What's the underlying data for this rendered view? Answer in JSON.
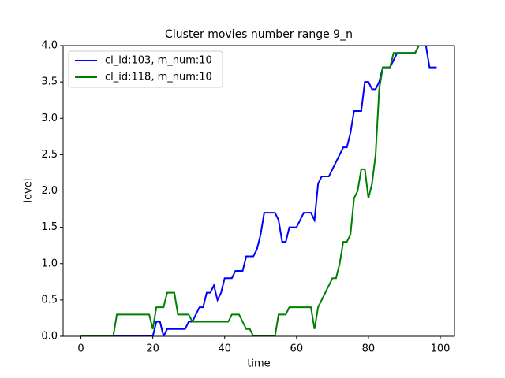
{
  "chart_data": {
    "type": "line",
    "title": "Cluster movies number range 9_n",
    "x_label": "time",
    "y_label": "level",
    "x": [
      0,
      1,
      2,
      3,
      4,
      5,
      6,
      7,
      8,
      9,
      10,
      11,
      12,
      13,
      14,
      15,
      16,
      17,
      18,
      19,
      20,
      21,
      22,
      23,
      24,
      25,
      26,
      27,
      28,
      29,
      30,
      31,
      32,
      33,
      34,
      35,
      36,
      37,
      38,
      39,
      40,
      41,
      42,
      43,
      44,
      45,
      46,
      47,
      48,
      49,
      50,
      51,
      52,
      53,
      54,
      55,
      56,
      57,
      58,
      59,
      60,
      61,
      62,
      63,
      64,
      65,
      66,
      67,
      68,
      69,
      70,
      71,
      72,
      73,
      74,
      75,
      76,
      77,
      78,
      79,
      80,
      81,
      82,
      83,
      84,
      85,
      86,
      87,
      88,
      89,
      90,
      91,
      92,
      93,
      94,
      95,
      96,
      97,
      98,
      99
    ],
    "series": [
      {
        "name": "cl_id:103, m_num:10",
        "color": "#0000ff",
        "values": [
          0,
          0,
          0,
          0,
          0,
          0,
          0,
          0,
          0,
          0,
          0,
          0,
          0,
          0,
          0,
          0,
          0,
          0,
          0,
          0,
          0,
          0.2,
          0.2,
          0,
          0.1,
          0.1,
          0.1,
          0.1,
          0.1,
          0.1,
          0.2,
          0.2,
          0.3,
          0.4,
          0.4,
          0.6,
          0.6,
          0.7,
          0.5,
          0.6,
          0.8,
          0.8,
          0.8,
          0.9,
          0.9,
          0.9,
          1.1,
          1.1,
          1.1,
          1.2,
          1.4,
          1.7,
          1.7,
          1.7,
          1.7,
          1.6,
          1.3,
          1.3,
          1.5,
          1.5,
          1.5,
          1.6,
          1.7,
          1.7,
          1.7,
          1.6,
          2.1,
          2.2,
          2.2,
          2.2,
          2.3,
          2.4,
          2.5,
          2.6,
          2.6,
          2.8,
          3.1,
          3.1,
          3.1,
          3.5,
          3.5,
          3.4,
          3.4,
          3.5,
          3.7,
          3.7,
          3.7,
          3.8,
          3.9,
          3.9,
          3.9,
          3.9,
          3.9,
          3.9,
          4.0,
          4.1,
          4.0,
          3.7,
          3.7,
          3.7
        ]
      },
      {
        "name": "cl_id:118, m_num:10",
        "color": "#008000",
        "values": [
          0,
          0,
          0,
          0,
          0,
          0,
          0,
          0,
          0,
          0,
          0.3,
          0.3,
          0.3,
          0.3,
          0.3,
          0.3,
          0.3,
          0.3,
          0.3,
          0.3,
          0.1,
          0.4,
          0.4,
          0.4,
          0.6,
          0.6,
          0.6,
          0.3,
          0.3,
          0.3,
          0.3,
          0.2,
          0.2,
          0.2,
          0.2,
          0.2,
          0.2,
          0.2,
          0.2,
          0.2,
          0.2,
          0.2,
          0.3,
          0.3,
          0.3,
          0.2,
          0.1,
          0.1,
          0,
          0,
          0,
          0,
          0,
          0,
          0,
          0.3,
          0.3,
          0.3,
          0.4,
          0.4,
          0.4,
          0.4,
          0.4,
          0.4,
          0.4,
          0.1,
          0.4,
          0.5,
          0.6,
          0.7,
          0.8,
          0.8,
          1.0,
          1.3,
          1.3,
          1.4,
          1.9,
          2.0,
          2.3,
          2.3,
          1.9,
          2.1,
          2.5,
          3.4,
          3.7,
          3.7,
          3.7,
          3.9,
          3.9,
          3.9,
          3.9,
          3.9,
          3.9,
          3.9,
          4.0,
          4.1,
          4.1,
          4.1,
          4.1,
          4.1
        ]
      }
    ],
    "xlim": [
      -4.95,
      103.95
    ],
    "ylim": [
      0,
      4
    ],
    "xticks": [
      0,
      20,
      40,
      60,
      80,
      100
    ],
    "yticks": [
      {
        "value": 0,
        "label": "0.0"
      },
      {
        "value": 0.5,
        "label": "0.5"
      },
      {
        "value": 1,
        "label": "1.0"
      },
      {
        "value": 1.5,
        "label": "1.5"
      },
      {
        "value": 2,
        "label": "2.0"
      },
      {
        "value": 2.5,
        "label": "2.5"
      },
      {
        "value": 3,
        "label": "3.0"
      },
      {
        "value": 3.5,
        "label": "3.5"
      },
      {
        "value": 4,
        "label": "4.0"
      }
    ],
    "legend": "upper left",
    "grid": false
  }
}
